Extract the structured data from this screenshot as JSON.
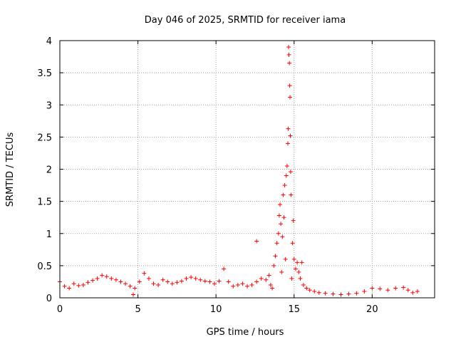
{
  "chart_data": {
    "type": "scatter",
    "title": "Day 046 of 2025, SRMTID for receiver iama",
    "xlabel": "GPS time / hours",
    "ylabel": "SRMTID / TECUs",
    "xlim": [
      0,
      24
    ],
    "ylim": [
      0,
      4
    ],
    "xticks": [
      0,
      5,
      10,
      15,
      20
    ],
    "yticks": [
      0,
      0.5,
      1,
      1.5,
      2,
      2.5,
      3,
      3.5,
      4
    ],
    "xtick_labels": [
      "0",
      "5",
      "10",
      "15",
      "20"
    ],
    "ytick_labels": [
      "0",
      "0.5",
      "1",
      "1.5",
      "2",
      "2.5",
      "3",
      "3.5",
      "4"
    ],
    "grid": true,
    "marker": "+",
    "color": "#ff0000",
    "series": [
      {
        "name": "SRMTID",
        "points": [
          [
            0.0,
            0.25
          ],
          [
            0.3,
            0.18
          ],
          [
            0.6,
            0.15
          ],
          [
            0.9,
            0.22
          ],
          [
            1.2,
            0.19
          ],
          [
            1.5,
            0.2
          ],
          [
            1.8,
            0.24
          ],
          [
            2.1,
            0.27
          ],
          [
            2.4,
            0.3
          ],
          [
            2.7,
            0.35
          ],
          [
            3.0,
            0.33
          ],
          [
            3.3,
            0.3
          ],
          [
            3.6,
            0.28
          ],
          [
            3.9,
            0.25
          ],
          [
            4.2,
            0.22
          ],
          [
            4.5,
            0.18
          ],
          [
            4.7,
            0.05
          ],
          [
            4.8,
            0.15
          ],
          [
            5.1,
            0.25
          ],
          [
            5.4,
            0.38
          ],
          [
            5.7,
            0.3
          ],
          [
            6.0,
            0.22
          ],
          [
            6.3,
            0.2
          ],
          [
            6.6,
            0.28
          ],
          [
            6.9,
            0.25
          ],
          [
            7.2,
            0.22
          ],
          [
            7.5,
            0.24
          ],
          [
            7.8,
            0.26
          ],
          [
            8.1,
            0.3
          ],
          [
            8.4,
            0.32
          ],
          [
            8.7,
            0.3
          ],
          [
            9.0,
            0.28
          ],
          [
            9.3,
            0.26
          ],
          [
            9.6,
            0.25
          ],
          [
            9.9,
            0.22
          ],
          [
            10.2,
            0.26
          ],
          [
            10.5,
            0.45
          ],
          [
            10.8,
            0.25
          ],
          [
            11.1,
            0.18
          ],
          [
            11.4,
            0.2
          ],
          [
            11.7,
            0.22
          ],
          [
            12.0,
            0.18
          ],
          [
            12.3,
            0.2
          ],
          [
            12.6,
            0.25
          ],
          [
            12.6,
            0.88
          ],
          [
            12.9,
            0.3
          ],
          [
            13.2,
            0.28
          ],
          [
            13.4,
            0.35
          ],
          [
            13.5,
            0.2
          ],
          [
            13.6,
            0.15
          ],
          [
            13.7,
            0.5
          ],
          [
            13.8,
            0.65
          ],
          [
            13.9,
            0.85
          ],
          [
            14.0,
            1.0
          ],
          [
            14.05,
            1.28
          ],
          [
            14.1,
            1.45
          ],
          [
            14.15,
            1.15
          ],
          [
            14.2,
            0.4
          ],
          [
            14.25,
            0.95
          ],
          [
            14.3,
            1.6
          ],
          [
            14.35,
            1.25
          ],
          [
            14.4,
            1.75
          ],
          [
            14.45,
            0.6
          ],
          [
            14.5,
            1.9
          ],
          [
            14.55,
            2.05
          ],
          [
            14.6,
            2.4
          ],
          [
            14.62,
            2.63
          ],
          [
            14.65,
            3.9
          ],
          [
            14.67,
            3.78
          ],
          [
            14.7,
            3.65
          ],
          [
            14.72,
            3.3
          ],
          [
            14.74,
            3.12
          ],
          [
            14.76,
            2.52
          ],
          [
            14.78,
            1.96
          ],
          [
            14.8,
            1.6
          ],
          [
            14.85,
            0.3
          ],
          [
            14.9,
            0.85
          ],
          [
            14.95,
            1.2
          ],
          [
            15.0,
            0.6
          ],
          [
            15.1,
            0.45
          ],
          [
            15.2,
            0.55
          ],
          [
            15.3,
            0.4
          ],
          [
            15.4,
            0.3
          ],
          [
            15.5,
            0.55
          ],
          [
            15.6,
            0.2
          ],
          [
            15.8,
            0.15
          ],
          [
            16.0,
            0.12
          ],
          [
            16.3,
            0.1
          ],
          [
            16.6,
            0.08
          ],
          [
            17.0,
            0.07
          ],
          [
            17.5,
            0.06
          ],
          [
            18.0,
            0.05
          ],
          [
            18.5,
            0.06
          ],
          [
            19.0,
            0.07
          ],
          [
            19.5,
            0.1
          ],
          [
            20.0,
            0.15
          ],
          [
            20.5,
            0.14
          ],
          [
            21.0,
            0.12
          ],
          [
            21.5,
            0.15
          ],
          [
            22.0,
            0.16
          ],
          [
            22.3,
            0.12
          ],
          [
            22.6,
            0.08
          ],
          [
            22.9,
            0.1
          ]
        ]
      }
    ]
  }
}
